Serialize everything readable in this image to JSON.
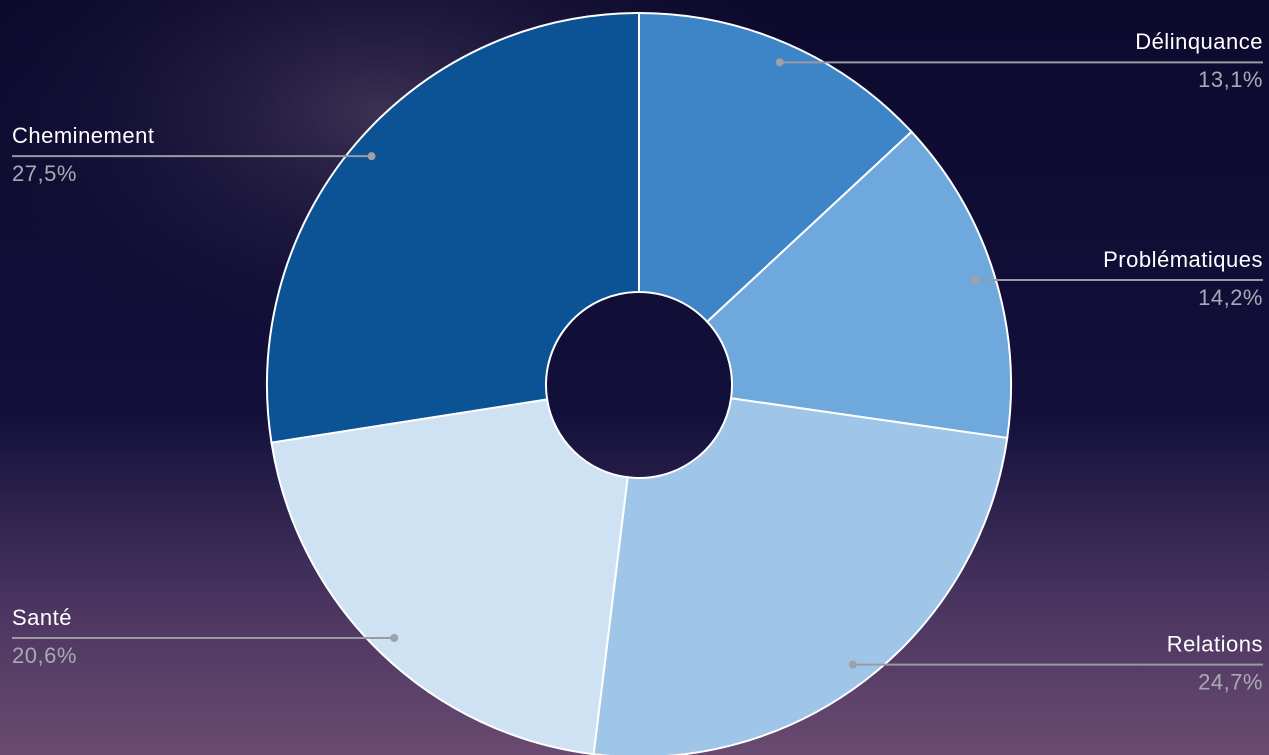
{
  "chart_data": {
    "type": "donut",
    "categories": [
      "Délinquance",
      "Problématiques",
      "Relations",
      "Santé",
      "Cheminement"
    ],
    "values": [
      13.1,
      14.2,
      24.7,
      20.6,
      27.5
    ],
    "value_labels": [
      "13,1%",
      "14,2%",
      "24,7%",
      "20,6%",
      "27,5%"
    ],
    "colors": [
      "#3d85c6",
      "#6fa8dc",
      "#9fc5e8",
      "#cfe2f3",
      "#0b5394"
    ]
  }
}
